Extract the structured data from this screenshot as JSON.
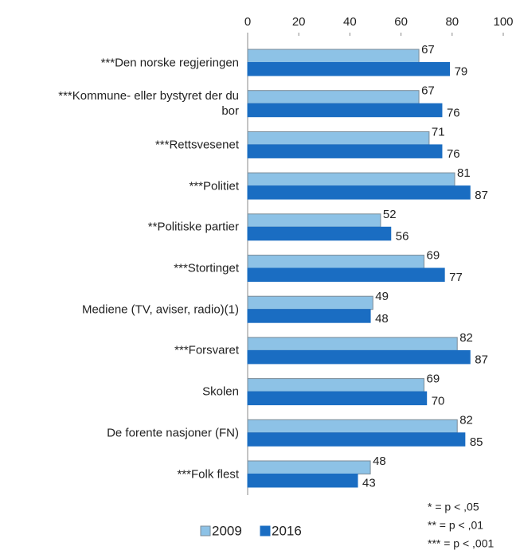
{
  "chart_data": {
    "type": "bar",
    "orientation": "horizontal",
    "categories": [
      "***Den norske regjeringen",
      "***Kommune- eller bystyret der du bor",
      "***Rettsvesenet",
      "***Politiet",
      "**Politiske partier",
      "***Stortinget",
      "Mediene (TV, aviser, radio)(1)",
      "***Forsvaret",
      "Skolen",
      "De forente nasjoner (FN)",
      "***Folk flest"
    ],
    "series": [
      {
        "name": "2009",
        "color": "#8dc2e6",
        "values": [
          67,
          67,
          71,
          81,
          52,
          69,
          49,
          82,
          69,
          82,
          48
        ]
      },
      {
        "name": "2016",
        "color": "#1a6dc2",
        "values": [
          79,
          76,
          76,
          87,
          56,
          77,
          48,
          87,
          70,
          85,
          43
        ]
      }
    ],
    "xlim": [
      0,
      100
    ],
    "xticks": [
      0,
      20,
      40,
      60,
      80,
      100
    ],
    "legend": "bottom",
    "notes": [
      "* = p < ,05",
      "** = p < ,01",
      "*** = p < ,001"
    ]
  }
}
